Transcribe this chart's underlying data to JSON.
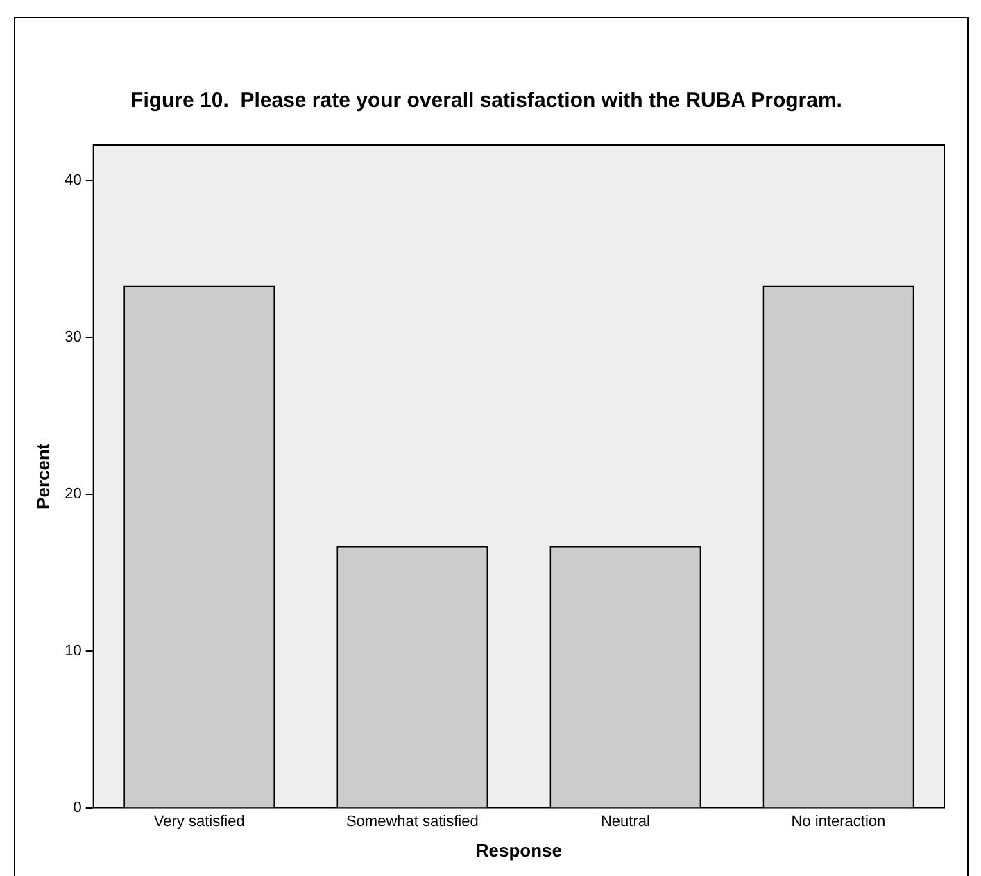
{
  "chart_data": {
    "type": "bar",
    "title": "Figure 10.  Please rate your overall satisfaction with the RUBA Program.",
    "xlabel": "Response",
    "ylabel": "Percent",
    "categories": [
      "Very satisfied",
      "Somewhat satisfied",
      "Neutral",
      "No interaction"
    ],
    "values": [
      33.3,
      16.7,
      16.7,
      33.3
    ],
    "color": "#cccccc",
    "ylim": [
      0,
      42.3
    ],
    "yticks": [
      0,
      10,
      20,
      30,
      40
    ],
    "grid": false,
    "legend": false
  }
}
